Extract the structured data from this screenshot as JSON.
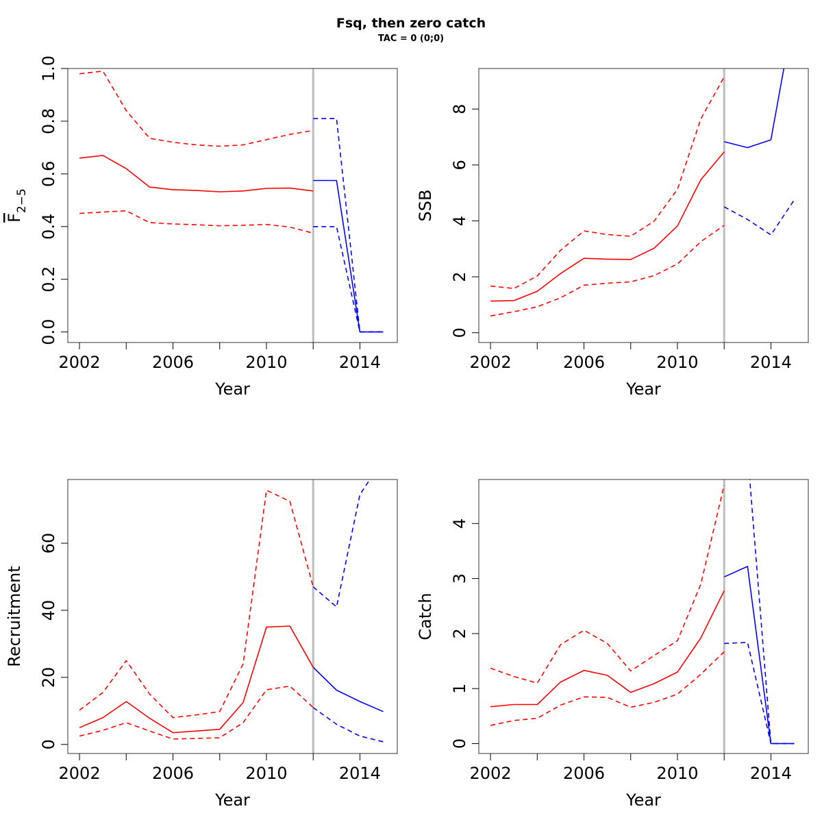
{
  "figure": {
    "title": "Fsq, then zero catch",
    "subtitle": "TAC = 0 (0;0)"
  },
  "colors": {
    "historic": "#ff0000",
    "projection": "#0000ff",
    "divider": "#bebebe"
  },
  "chart_data": [
    {
      "type": "line",
      "ylabel_main": "F",
      "ylabel_sub": "2−5",
      "xlabel": "Year",
      "xlim": [
        2001.5,
        2015.6
      ],
      "ylim": [
        -0.04,
        1.0
      ],
      "x_ticks": [
        2002,
        2006,
        2010,
        2014
      ],
      "x_minor_ticks": [
        2004,
        2008,
        2012
      ],
      "y_ticks": [
        "0.0",
        "0.2",
        "0.4",
        "0.6",
        "0.8",
        "1.0"
      ],
      "y_tick_values": [
        0.0,
        0.2,
        0.4,
        0.6,
        0.8,
        1.0
      ],
      "divider_x": 2012,
      "series": [
        {
          "role": "historic-estimate",
          "style": "solid",
          "color": "#ff0000",
          "x": [
            2002,
            2003,
            2004,
            2005,
            2006,
            2007,
            2008,
            2009,
            2010,
            2011,
            2012
          ],
          "y": [
            0.66,
            0.67,
            0.62,
            0.55,
            0.54,
            0.537,
            0.532,
            0.535,
            0.545,
            0.546,
            0.535
          ]
        },
        {
          "role": "historic-upper",
          "style": "dashed",
          "color": "#ff0000",
          "x": [
            2002,
            2003,
            2004,
            2005,
            2006,
            2007,
            2008,
            2009,
            2010,
            2011,
            2012
          ],
          "y": [
            0.98,
            0.99,
            0.84,
            0.735,
            0.72,
            0.71,
            0.705,
            0.71,
            0.73,
            0.75,
            0.765
          ]
        },
        {
          "role": "historic-lower",
          "style": "dashed",
          "color": "#ff0000",
          "x": [
            2002,
            2003,
            2004,
            2005,
            2006,
            2007,
            2008,
            2009,
            2010,
            2011,
            2012
          ],
          "y": [
            0.45,
            0.455,
            0.46,
            0.415,
            0.41,
            0.407,
            0.403,
            0.405,
            0.408,
            0.398,
            0.375
          ]
        },
        {
          "role": "projection-estimate",
          "style": "solid",
          "color": "#0000ff",
          "x": [
            2012,
            2013,
            2014,
            2015
          ],
          "y": [
            0.575,
            0.575,
            0.0,
            0.0
          ]
        },
        {
          "role": "projection-upper",
          "style": "dashed",
          "color": "#0000ff",
          "x": [
            2012,
            2013,
            2014,
            2015
          ],
          "y": [
            0.81,
            0.81,
            0.0,
            0.0
          ]
        },
        {
          "role": "projection-lower",
          "style": "dashed",
          "color": "#0000ff",
          "x": [
            2012,
            2013,
            2014,
            2015
          ],
          "y": [
            0.4,
            0.4,
            0.0,
            0.0
          ]
        }
      ]
    },
    {
      "type": "line",
      "ylabel_main": "SSB",
      "ylabel_sub": "",
      "xlabel": "Year",
      "xlim": [
        2001.5,
        2015.6
      ],
      "ylim": [
        -0.35,
        9.45
      ],
      "x_ticks": [
        2002,
        2006,
        2010,
        2014
      ],
      "x_minor_ticks": [
        2004,
        2008,
        2012
      ],
      "y_ticks": [
        "0",
        "2",
        "4",
        "6",
        "8"
      ],
      "y_tick_values": [
        0,
        2,
        4,
        6,
        8
      ],
      "divider_x": 2012,
      "series": [
        {
          "role": "historic-estimate",
          "style": "solid",
          "color": "#ff0000",
          "x": [
            2002,
            2003,
            2004,
            2005,
            2006,
            2007,
            2008,
            2009,
            2010,
            2011,
            2012
          ],
          "y": [
            1.13,
            1.15,
            1.48,
            2.12,
            2.66,
            2.63,
            2.62,
            3.02,
            3.82,
            5.47,
            6.47
          ]
        },
        {
          "role": "historic-upper",
          "style": "dashed",
          "color": "#ff0000",
          "x": [
            2002,
            2003,
            2004,
            2005,
            2006,
            2007,
            2008,
            2009,
            2010,
            2011,
            2012
          ],
          "y": [
            1.67,
            1.58,
            2.03,
            2.95,
            3.64,
            3.51,
            3.45,
            3.99,
            5.13,
            7.65,
            9.15
          ]
        },
        {
          "role": "historic-lower",
          "style": "dashed",
          "color": "#ff0000",
          "x": [
            2002,
            2003,
            2004,
            2005,
            2006,
            2007,
            2008,
            2009,
            2010,
            2011,
            2012
          ],
          "y": [
            0.6,
            0.75,
            0.93,
            1.25,
            1.7,
            1.77,
            1.82,
            2.04,
            2.46,
            3.26,
            3.84
          ]
        },
        {
          "role": "projection-estimate",
          "style": "solid",
          "color": "#0000ff",
          "x": [
            2012,
            2013,
            2014,
            2015
          ],
          "y": [
            6.83,
            6.62,
            6.9,
            11.5
          ]
        },
        {
          "role": "projection-lower",
          "style": "dashed",
          "color": "#0000ff",
          "x": [
            2012,
            2013,
            2014,
            2015
          ],
          "y": [
            4.5,
            4.05,
            3.5,
            4.75
          ]
        }
      ]
    },
    {
      "type": "line",
      "ylabel_main": "Recruitment",
      "ylabel_sub": "",
      "xlabel": "Year",
      "xlim": [
        2001.5,
        2015.6
      ],
      "ylim": [
        -2.7,
        79.0
      ],
      "x_ticks": [
        2002,
        2006,
        2010,
        2014
      ],
      "x_minor_ticks": [
        2004,
        2008,
        2012
      ],
      "y_ticks": [
        "0",
        "20",
        "40",
        "60"
      ],
      "y_tick_values": [
        0,
        20,
        40,
        60
      ],
      "divider_x": 2012,
      "series": [
        {
          "role": "historic-estimate",
          "style": "solid",
          "color": "#ff0000",
          "x": [
            2002,
            2003,
            2004,
            2005,
            2006,
            2007,
            2008,
            2009,
            2010,
            2011,
            2012
          ],
          "y": [
            5.0,
            8.0,
            12.8,
            7.8,
            3.5,
            4.0,
            4.5,
            12.5,
            35.0,
            35.3,
            23.0
          ]
        },
        {
          "role": "historic-upper",
          "style": "dashed",
          "color": "#ff0000",
          "x": [
            2002,
            2003,
            2004,
            2005,
            2006,
            2007,
            2008,
            2009,
            2010,
            2011,
            2012
          ],
          "y": [
            10.2,
            15.5,
            25.0,
            15.0,
            8.0,
            8.8,
            9.8,
            24.0,
            75.8,
            72.5,
            47.0
          ]
        },
        {
          "role": "historic-lower",
          "style": "dashed",
          "color": "#ff0000",
          "x": [
            2002,
            2003,
            2004,
            2005,
            2006,
            2007,
            2008,
            2009,
            2010,
            2011,
            2012
          ],
          "y": [
            2.5,
            4.2,
            6.5,
            4.0,
            1.6,
            1.8,
            2.0,
            6.5,
            16.3,
            17.4,
            11.0
          ]
        },
        {
          "role": "projection-estimate",
          "style": "solid",
          "color": "#0000ff",
          "x": [
            2012,
            2013,
            2014,
            2015
          ],
          "y": [
            23.0,
            16.2,
            12.8,
            9.8
          ]
        },
        {
          "role": "projection-upper",
          "style": "dashed",
          "color": "#0000ff",
          "x": [
            2012,
            2013,
            2014,
            2015
          ],
          "y": [
            47.0,
            41.0,
            74.5,
            85.0
          ]
        },
        {
          "role": "projection-lower",
          "style": "dashed",
          "color": "#0000ff",
          "x": [
            2012,
            2013,
            2014,
            2015
          ],
          "y": [
            11.0,
            6.0,
            2.5,
            0.8
          ]
        }
      ]
    },
    {
      "type": "line",
      "ylabel_main": "Catch",
      "ylabel_sub": "",
      "xlabel": "Year",
      "xlim": [
        2001.5,
        2015.6
      ],
      "ylim": [
        -0.18,
        4.8
      ],
      "x_ticks": [
        2002,
        2006,
        2010,
        2014
      ],
      "x_minor_ticks": [
        2004,
        2008,
        2012
      ],
      "y_ticks": [
        "0",
        "1",
        "2",
        "3",
        "4"
      ],
      "y_tick_values": [
        0,
        1,
        2,
        3,
        4
      ],
      "divider_x": 2012,
      "series": [
        {
          "role": "historic-estimate",
          "style": "solid",
          "color": "#ff0000",
          "x": [
            2002,
            2003,
            2004,
            2005,
            2006,
            2007,
            2008,
            2009,
            2010,
            2011,
            2012
          ],
          "y": [
            0.67,
            0.71,
            0.71,
            1.12,
            1.33,
            1.24,
            0.93,
            1.09,
            1.3,
            1.92,
            2.78
          ]
        },
        {
          "role": "historic-upper",
          "style": "dashed",
          "color": "#ff0000",
          "x": [
            2002,
            2003,
            2004,
            2005,
            2006,
            2007,
            2008,
            2009,
            2010,
            2011,
            2012
          ],
          "y": [
            1.37,
            1.22,
            1.1,
            1.8,
            2.06,
            1.82,
            1.32,
            1.6,
            1.87,
            2.9,
            4.7
          ]
        },
        {
          "role": "historic-lower",
          "style": "dashed",
          "color": "#ff0000",
          "x": [
            2002,
            2003,
            2004,
            2005,
            2006,
            2007,
            2008,
            2009,
            2010,
            2011,
            2012
          ],
          "y": [
            0.33,
            0.42,
            0.46,
            0.7,
            0.85,
            0.84,
            0.66,
            0.75,
            0.9,
            1.26,
            1.67
          ]
        },
        {
          "role": "projection-estimate",
          "style": "solid",
          "color": "#0000ff",
          "x": [
            2012,
            2013,
            2014,
            2015
          ],
          "y": [
            3.03,
            3.22,
            0.0,
            0.0
          ]
        },
        {
          "role": "projection-upper",
          "style": "dashed",
          "color": "#0000ff",
          "x": [
            2012,
            2013,
            2014,
            2015
          ],
          "y": [
            4.85,
            5.3,
            0.0,
            0.0
          ]
        },
        {
          "role": "projection-lower",
          "style": "dashed",
          "color": "#0000ff",
          "x": [
            2012,
            2013,
            2014,
            2015
          ],
          "y": [
            1.82,
            1.84,
            0.0,
            0.0
          ]
        }
      ]
    }
  ]
}
